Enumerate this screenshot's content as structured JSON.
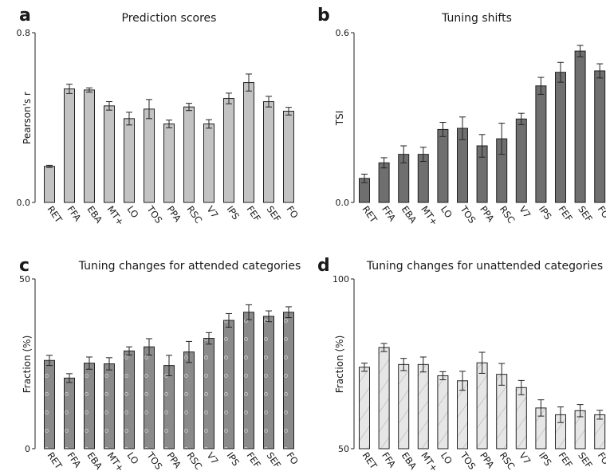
{
  "chart_data": [
    {
      "panel": "a",
      "type": "bar",
      "title": "Prediction scores",
      "ylabel": "Pearson's r",
      "ylim": [
        0,
        0.8
      ],
      "yticks": [
        "0.0",
        "0.8"
      ],
      "categories": [
        "RET",
        "FFA",
        "EBA",
        "MT+",
        "LO",
        "TOS",
        "PPA",
        "RSC",
        "V7",
        "IPS",
        "FEF",
        "SEF",
        "FO"
      ],
      "values": [
        0.17,
        0.535,
        0.53,
        0.455,
        0.395,
        0.44,
        0.37,
        0.45,
        0.37,
        0.49,
        0.565,
        0.475,
        0.43
      ],
      "errors": [
        0.005,
        0.022,
        0.01,
        0.02,
        0.03,
        0.045,
        0.018,
        0.017,
        0.02,
        0.025,
        0.04,
        0.025,
        0.018
      ],
      "fill": "#c3c3c3",
      "pattern": "none"
    },
    {
      "panel": "b",
      "type": "bar",
      "title": "Tuning shifts",
      "ylabel": "TSI",
      "ylim": [
        0,
        0.6
      ],
      "yticks": [
        "0.0",
        "0.6"
      ],
      "categories": [
        "RET",
        "FFA",
        "EBA",
        "MT+",
        "LO",
        "TOS",
        "PPA",
        "RSC",
        "V7",
        "IPS",
        "FEF",
        "SEF",
        "FO"
      ],
      "values": [
        0.085,
        0.14,
        0.17,
        0.17,
        0.258,
        0.262,
        0.2,
        0.225,
        0.295,
        0.412,
        0.46,
        0.535,
        0.465
      ],
      "errors": [
        0.015,
        0.018,
        0.03,
        0.025,
        0.025,
        0.04,
        0.04,
        0.055,
        0.02,
        0.03,
        0.035,
        0.02,
        0.025
      ],
      "fill": "#6f6f6f",
      "pattern": "none"
    },
    {
      "panel": "c",
      "type": "bar",
      "title": "Tuning changes for attended categories",
      "ylabel": "Fraction (%)",
      "ylim": [
        0,
        50
      ],
      "yticks": [
        "0",
        "50"
      ],
      "categories": [
        "RET",
        "FFA",
        "EBA",
        "MT+",
        "LO",
        "TOS",
        "PPA",
        "RSC",
        "V7",
        "IPS",
        "FEF",
        "SEF",
        "FO"
      ],
      "values": [
        26,
        20.8,
        25.2,
        25,
        28.8,
        30,
        24.5,
        28.5,
        32.5,
        37.8,
        40.2,
        39,
        40.2
      ],
      "errors": [
        1.5,
        1.3,
        1.8,
        1.8,
        1.2,
        2.4,
        3,
        3.1,
        1.7,
        2,
        2.2,
        1.6,
        1.6
      ],
      "fill": "#8a8a8a",
      "pattern": "dots"
    },
    {
      "panel": "d",
      "type": "bar",
      "title": "Tuning changes for unattended categories",
      "ylabel": "Fraction (%)",
      "ylim": [
        50,
        100
      ],
      "yticks": [
        "50",
        "100"
      ],
      "categories": [
        "RET",
        "FFA",
        "EBA",
        "MT+",
        "LO",
        "TOS",
        "PPA",
        "RSC",
        "V7",
        "IPS",
        "FEF",
        "SEF",
        "FO"
      ],
      "values": [
        74,
        79.8,
        74.8,
        74.8,
        71.5,
        70,
        75.3,
        71.9,
        68,
        62,
        60,
        61.2,
        60
      ],
      "errors": [
        1.2,
        1.2,
        1.8,
        2.2,
        1.2,
        2.8,
        3.1,
        3.2,
        2.1,
        2.4,
        2.3,
        1.8,
        1.3
      ],
      "fill": "#e6e6e6",
      "pattern": "hatch"
    }
  ]
}
